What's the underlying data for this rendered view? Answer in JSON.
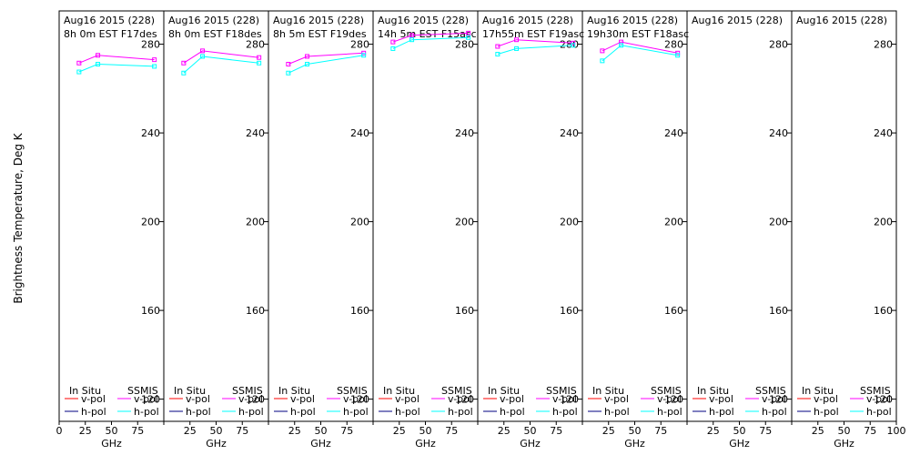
{
  "chart_data": {
    "type": "line",
    "ylabel": "Brightness Temperature, Deg K",
    "xlabel": "GHz",
    "xlim": [
      0,
      100
    ],
    "ylim": [
      110,
      295
    ],
    "x_ticks": [
      0,
      25,
      50,
      75,
      100
    ],
    "x_tick_labels": [
      "0",
      "25",
      "50",
      "75",
      "100"
    ],
    "y_ticks": [
      120,
      160,
      200,
      240,
      280
    ],
    "legend": {
      "left_title": "In Situ",
      "right_title": "SSMIS",
      "vpol": "v-pol",
      "hpol": "h-pol"
    },
    "colors": {
      "insitu_v": "#ff0000",
      "insitu_h": "#000080",
      "ssmis_v": "#ff00ff",
      "ssmis_h": "#00ffff"
    },
    "panels": [
      {
        "title1": "Aug16 2015 (228)",
        "title2": "8h 0m  EST F17des",
        "series": [
          {
            "name": "v-pol",
            "source": "SSMIS",
            "x": [
              19,
              37,
              91
            ],
            "y": [
              271.5,
              275,
              273
            ]
          },
          {
            "name": "h-pol",
            "source": "SSMIS",
            "x": [
              19,
              37,
              91
            ],
            "y": [
              267.5,
              271,
              270
            ]
          }
        ]
      },
      {
        "title1": "Aug16 2015 (228)",
        "title2": "8h 0m  EST F18des",
        "series": [
          {
            "name": "v-pol",
            "source": "SSMIS",
            "x": [
              19,
              37,
              91
            ],
            "y": [
              271.5,
              277,
              274
            ]
          },
          {
            "name": "h-pol",
            "source": "SSMIS",
            "x": [
              19,
              37,
              91
            ],
            "y": [
              267,
              274.5,
              271.5
            ]
          }
        ]
      },
      {
        "title1": "Aug16 2015 (228)",
        "title2": "8h 5m  EST F19des",
        "series": [
          {
            "name": "v-pol",
            "source": "SSMIS",
            "x": [
              19,
              37,
              91
            ],
            "y": [
              271,
              274.5,
              276
            ]
          },
          {
            "name": "h-pol",
            "source": "SSMIS",
            "x": [
              19,
              37,
              91
            ],
            "y": [
              267,
              271,
              275
            ]
          }
        ]
      },
      {
        "title1": "Aug16 2015 (228)",
        "title2": "14h 5m  EST F15asc",
        "series": [
          {
            "name": "v-pol",
            "source": "SSMIS",
            "x": [
              19,
              37,
              91
            ],
            "y": [
              281,
              284,
              285
            ]
          },
          {
            "name": "h-pol",
            "source": "SSMIS",
            "x": [
              19,
              37,
              91
            ],
            "y": [
              278,
              282,
              283
            ]
          }
        ]
      },
      {
        "title1": "Aug16 2015 (228)",
        "title2": "17h55m  EST F19asc",
        "series": [
          {
            "name": "v-pol",
            "source": "SSMIS",
            "x": [
              19,
              37,
              91
            ],
            "y": [
              279,
              282,
              280.5
            ]
          },
          {
            "name": "h-pol",
            "source": "SSMIS",
            "x": [
              19,
              37,
              91
            ],
            "y": [
              275.5,
              278,
              279.5
            ]
          }
        ]
      },
      {
        "title1": "Aug16 2015 (228)",
        "title2": "19h30m  EST F18asc",
        "series": [
          {
            "name": "v-pol",
            "source": "SSMIS",
            "x": [
              19,
              37,
              91
            ],
            "y": [
              277,
              281,
              276
            ]
          },
          {
            "name": "h-pol",
            "source": "SSMIS",
            "x": [
              19,
              37,
              91
            ],
            "y": [
              272.5,
              279.5,
              275
            ]
          }
        ]
      },
      {
        "title1": "Aug16 2015 (228)",
        "title2": "",
        "series": []
      },
      {
        "title1": "Aug16 2015 (228)",
        "title2": "",
        "series": []
      }
    ]
  }
}
